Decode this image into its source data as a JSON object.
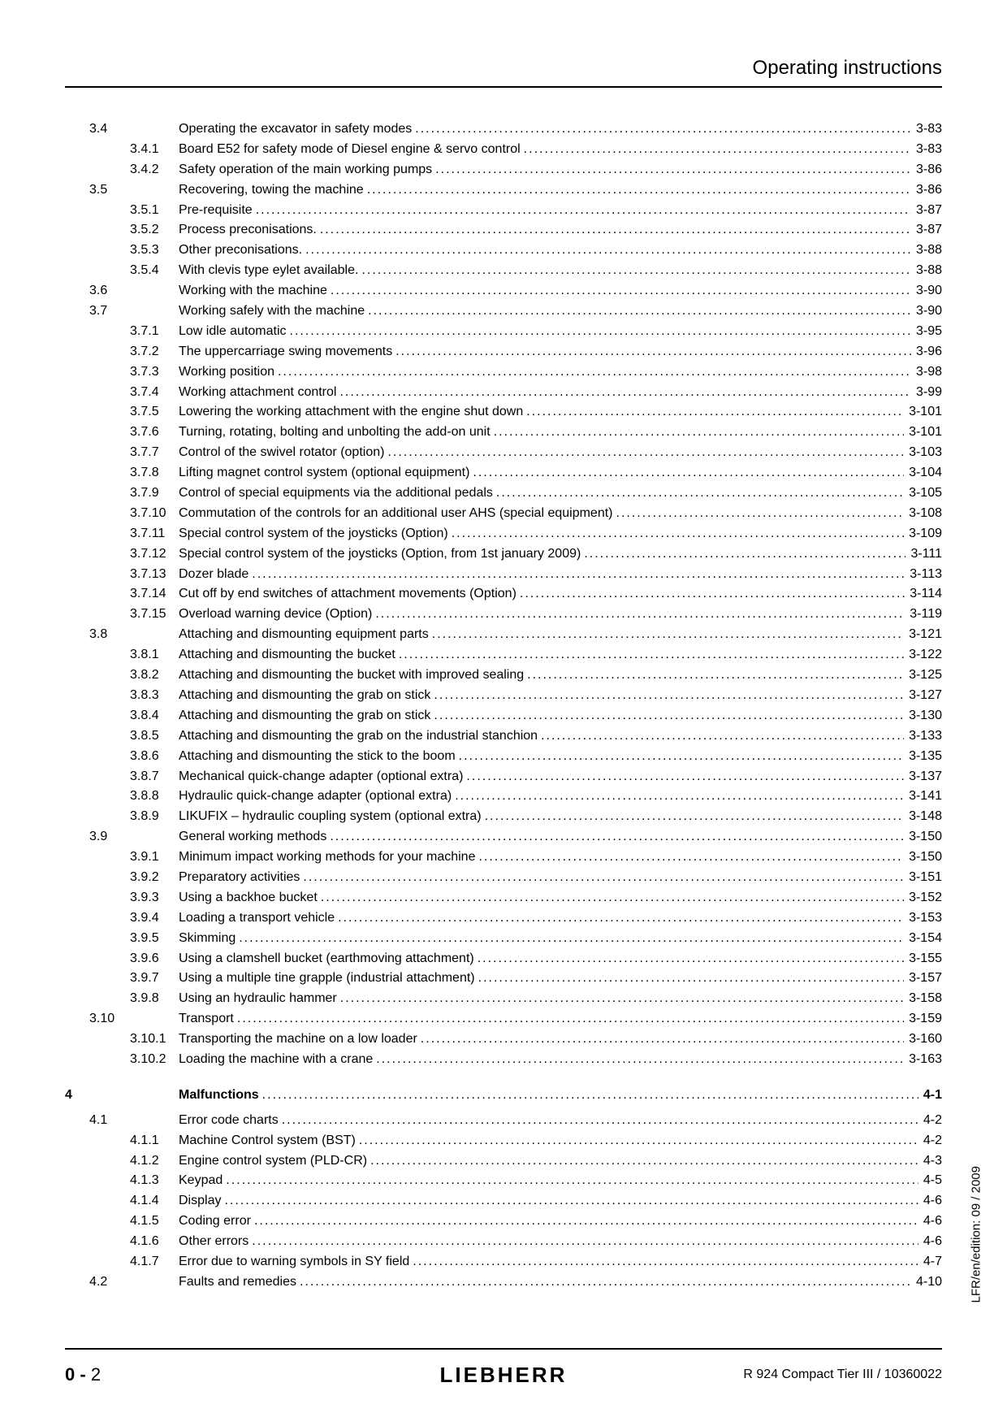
{
  "header": {
    "title": "Operating instructions"
  },
  "side_text": "LFR/en/edition: 09 / 2009",
  "footer": {
    "page_prefix": "0 -",
    "page_num": "2",
    "logo": "LIEBHERR",
    "doc": "R 924 Compact Tier III / 10360022"
  },
  "toc": [
    {
      "ch": "",
      "sec": "3.4",
      "sub": "",
      "title": "Operating the excavator in safety modes",
      "page": "3-83"
    },
    {
      "ch": "",
      "sec": "",
      "sub": "3.4.1",
      "title": "Board E52 for safety mode of Diesel engine & servo control",
      "page": "3-83"
    },
    {
      "ch": "",
      "sec": "",
      "sub": "3.4.2",
      "title": "Safety operation of the main working pumps",
      "page": "3-86"
    },
    {
      "ch": "",
      "sec": "3.5",
      "sub": "",
      "title": "Recovering, towing the machine",
      "page": "3-86"
    },
    {
      "ch": "",
      "sec": "",
      "sub": "3.5.1",
      "title": "Pre-requisite",
      "page": "3-87"
    },
    {
      "ch": "",
      "sec": "",
      "sub": "3.5.2",
      "title": "Process preconisations.",
      "page": "3-87"
    },
    {
      "ch": "",
      "sec": "",
      "sub": "3.5.3",
      "title": "Other preconisations.",
      "page": "3-88"
    },
    {
      "ch": "",
      "sec": "",
      "sub": "3.5.4",
      "title": "With clevis type eylet available.",
      "page": "3-88"
    },
    {
      "ch": "",
      "sec": "3.6",
      "sub": "",
      "title": "Working with the machine",
      "page": "3-90"
    },
    {
      "ch": "",
      "sec": "3.7",
      "sub": "",
      "title": "Working safely with the machine",
      "page": "3-90"
    },
    {
      "ch": "",
      "sec": "",
      "sub": "3.7.1",
      "title": "Low idle automatic",
      "page": "3-95"
    },
    {
      "ch": "",
      "sec": "",
      "sub": "3.7.2",
      "title": "The uppercarriage swing movements",
      "page": "3-96"
    },
    {
      "ch": "",
      "sec": "",
      "sub": "3.7.3",
      "title": "Working position",
      "page": "3-98"
    },
    {
      "ch": "",
      "sec": "",
      "sub": "3.7.4",
      "title": "Working attachment control",
      "page": "3-99"
    },
    {
      "ch": "",
      "sec": "",
      "sub": "3.7.5",
      "title": "Lowering the working attachment with the engine shut down",
      "page": "3-101"
    },
    {
      "ch": "",
      "sec": "",
      "sub": "3.7.6",
      "title": "Turning, rotating, bolting and unbolting the add-on unit",
      "page": "3-101"
    },
    {
      "ch": "",
      "sec": "",
      "sub": "3.7.7",
      "title": "Control of the swivel rotator (option)",
      "page": "3-103"
    },
    {
      "ch": "",
      "sec": "",
      "sub": "3.7.8",
      "title": "Lifting magnet control system (optional equipment)",
      "page": "3-104"
    },
    {
      "ch": "",
      "sec": "",
      "sub": "3.7.9",
      "title": "Control of special equipments via the additional pedals",
      "page": "3-105"
    },
    {
      "ch": "",
      "sec": "",
      "sub": "3.7.10",
      "title": "Commutation of the controls for an additional user AHS (special equipment)",
      "page": "3-108"
    },
    {
      "ch": "",
      "sec": "",
      "sub": "3.7.11",
      "title": "Special control system of the joysticks (Option)",
      "page": "3-109"
    },
    {
      "ch": "",
      "sec": "",
      "sub": "3.7.12",
      "title": "Special control system of the joysticks (Option, from 1st january 2009)",
      "page": "3-111"
    },
    {
      "ch": "",
      "sec": "",
      "sub": "3.7.13",
      "title": "Dozer blade",
      "page": "3-113"
    },
    {
      "ch": "",
      "sec": "",
      "sub": "3.7.14",
      "title": "Cut off by end switches of attachment movements (Option)",
      "page": "3-114"
    },
    {
      "ch": "",
      "sec": "",
      "sub": "3.7.15",
      "title": "Overload warning device (Option)",
      "page": "3-119"
    },
    {
      "ch": "",
      "sec": "3.8",
      "sub": "",
      "title": "Attaching and dismounting equipment parts",
      "page": "3-121"
    },
    {
      "ch": "",
      "sec": "",
      "sub": "3.8.1",
      "title": "Attaching and dismounting the bucket",
      "page": "3-122"
    },
    {
      "ch": "",
      "sec": "",
      "sub": "3.8.2",
      "title": "Attaching and dismounting the bucket with improved sealing",
      "page": "3-125"
    },
    {
      "ch": "",
      "sec": "",
      "sub": "3.8.3",
      "title": "Attaching and dismounting the grab on stick",
      "page": "3-127"
    },
    {
      "ch": "",
      "sec": "",
      "sub": "3.8.4",
      "title": "Attaching and dismounting the grab on stick",
      "page": "3-130"
    },
    {
      "ch": "",
      "sec": "",
      "sub": "3.8.5",
      "title": "Attaching and dismounting the grab on the industrial stanchion",
      "page": "3-133"
    },
    {
      "ch": "",
      "sec": "",
      "sub": "3.8.6",
      "title": "Attaching and dismounting the stick to the boom",
      "page": "3-135"
    },
    {
      "ch": "",
      "sec": "",
      "sub": "3.8.7",
      "title": "Mechanical quick-change adapter (optional extra)",
      "page": "3-137"
    },
    {
      "ch": "",
      "sec": "",
      "sub": "3.8.8",
      "title": "Hydraulic quick-change adapter (optional extra)",
      "page": "3-141"
    },
    {
      "ch": "",
      "sec": "",
      "sub": "3.8.9",
      "title": "LIKUFIX – hydraulic coupling system (optional extra)",
      "page": "3-148"
    },
    {
      "ch": "",
      "sec": "3.9",
      "sub": "",
      "title": "General working methods",
      "page": "3-150"
    },
    {
      "ch": "",
      "sec": "",
      "sub": "3.9.1",
      "title": "Minimum impact working methods for your machine",
      "page": "3-150"
    },
    {
      "ch": "",
      "sec": "",
      "sub": "3.9.2",
      "title": "Preparatory activities",
      "page": "3-151"
    },
    {
      "ch": "",
      "sec": "",
      "sub": "3.9.3",
      "title": "Using a backhoe bucket",
      "page": "3-152"
    },
    {
      "ch": "",
      "sec": "",
      "sub": "3.9.4",
      "title": "Loading a transport vehicle",
      "page": "3-153"
    },
    {
      "ch": "",
      "sec": "",
      "sub": "3.9.5",
      "title": "Skimming",
      "page": "3-154"
    },
    {
      "ch": "",
      "sec": "",
      "sub": "3.9.6",
      "title": "Using a clamshell bucket (earthmoving attachment)",
      "page": "3-155"
    },
    {
      "ch": "",
      "sec": "",
      "sub": "3.9.7",
      "title": "Using a multiple tine grapple (industrial attachment)",
      "page": "3-157"
    },
    {
      "ch": "",
      "sec": "",
      "sub": "3.9.8",
      "title": "Using an hydraulic hammer",
      "page": "3-158"
    },
    {
      "ch": "",
      "sec": "3.10",
      "sub": "",
      "title": "Transport",
      "page": "3-159"
    },
    {
      "ch": "",
      "sec": "",
      "sub": "3.10.1",
      "title": "Transporting the machine on a low loader",
      "page": "3-160"
    },
    {
      "ch": "",
      "sec": "",
      "sub": "3.10.2",
      "title": "Loading the machine with a crane",
      "page": "3-163"
    },
    {
      "ch": "4",
      "sec": "",
      "sub": "",
      "title": "Malfunctions",
      "page": "4-1",
      "chapter_row": true
    },
    {
      "ch": "",
      "sec": "4.1",
      "sub": "",
      "title": "Error code charts",
      "page": "4-2",
      "sub_gap": true
    },
    {
      "ch": "",
      "sec": "",
      "sub": "4.1.1",
      "title": "Machine Control system (BST)",
      "page": "4-2"
    },
    {
      "ch": "",
      "sec": "",
      "sub": "4.1.2",
      "title": "Engine control system (PLD-CR)",
      "page": "4-3"
    },
    {
      "ch": "",
      "sec": "",
      "sub": "4.1.3",
      "title": "Keypad",
      "page": "4-5"
    },
    {
      "ch": "",
      "sec": "",
      "sub": "4.1.4",
      "title": "Display",
      "page": "4-6"
    },
    {
      "ch": "",
      "sec": "",
      "sub": "4.1.5",
      "title": "Coding error",
      "page": "4-6"
    },
    {
      "ch": "",
      "sec": "",
      "sub": "4.1.6",
      "title": "Other errors",
      "page": "4-6"
    },
    {
      "ch": "",
      "sec": "",
      "sub": "4.1.7",
      "title": "Error due to warning symbols in SY field",
      "page": "4-7"
    },
    {
      "ch": "",
      "sec": "4.2",
      "sub": "",
      "title": "Faults and remedies",
      "page": "4-10"
    }
  ]
}
